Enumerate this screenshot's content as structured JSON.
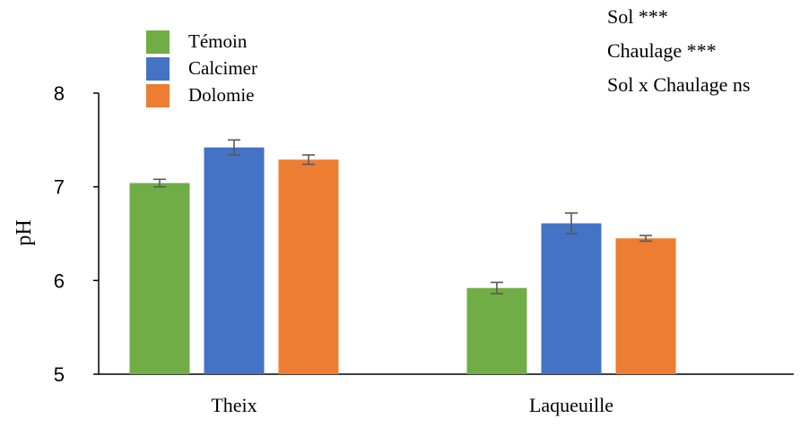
{
  "chart_data": {
    "type": "bar",
    "categories": [
      "Theix",
      "Laqueuille"
    ],
    "series": [
      {
        "name": "Témoin",
        "color": "#70ad47",
        "values": [
          7.04,
          5.92
        ],
        "errors": [
          0.04,
          0.06
        ]
      },
      {
        "name": "Calcimer",
        "color": "#4472c4",
        "values": [
          7.42,
          6.61
        ],
        "errors": [
          0.08,
          0.11
        ]
      },
      {
        "name": "Dolomie",
        "color": "#ed7d31",
        "values": [
          7.29,
          6.45
        ],
        "errors": [
          0.05,
          0.03
        ]
      }
    ],
    "ylabel": "pH",
    "xlabel": "",
    "ylim": [
      5,
      8
    ],
    "yticks": [
      5,
      6,
      7,
      8
    ],
    "grid": false,
    "legend_position": "top-left",
    "annotations": [
      "Sol ***",
      "Chaulage ***",
      "Sol x Chaulage ns"
    ]
  }
}
